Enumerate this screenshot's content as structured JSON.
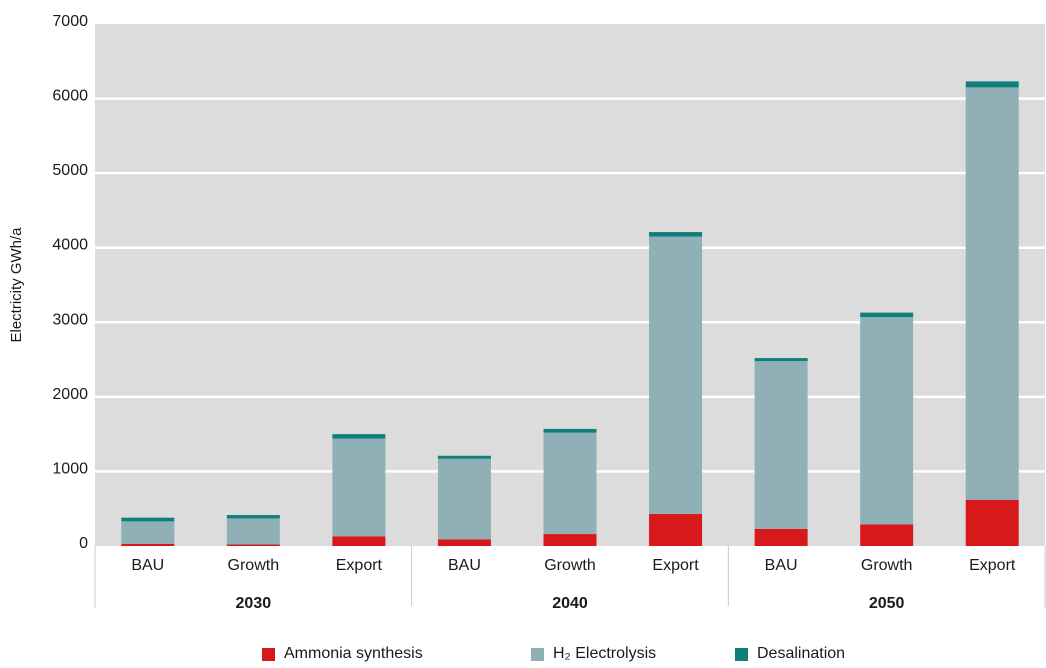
{
  "chart_data": {
    "type": "bar",
    "stacked": true,
    "ylabel": "Electricity GWh/a",
    "ylim": [
      0,
      7000
    ],
    "yticks": [
      0,
      1000,
      2000,
      3000,
      4000,
      5000,
      6000,
      7000
    ],
    "categories": [
      "BAU",
      "Growth",
      "Export",
      "BAU",
      "Growth",
      "Export",
      "BAU",
      "Growth",
      "Export"
    ],
    "groups": [
      {
        "label": "2030",
        "span": [
          0,
          3
        ]
      },
      {
        "label": "2040",
        "span": [
          3,
          6
        ]
      },
      {
        "label": "2050",
        "span": [
          6,
          9
        ]
      }
    ],
    "series": [
      {
        "name": "Ammonia synthesis",
        "color": "#d7191c",
        "values": [
          30,
          20,
          130,
          90,
          160,
          430,
          230,
          290,
          620
        ]
      },
      {
        "name": "H₂ Electrolysis",
        "color": "#8fb0b6",
        "values": [
          300,
          350,
          1310,
          1080,
          1360,
          3720,
          2250,
          2780,
          5530
        ]
      },
      {
        "name": "Desalination",
        "color": "#0f7f7b",
        "values": [
          50,
          45,
          60,
          40,
          50,
          60,
          40,
          60,
          80
        ]
      }
    ],
    "grid": true,
    "legend_position": "bottom"
  }
}
